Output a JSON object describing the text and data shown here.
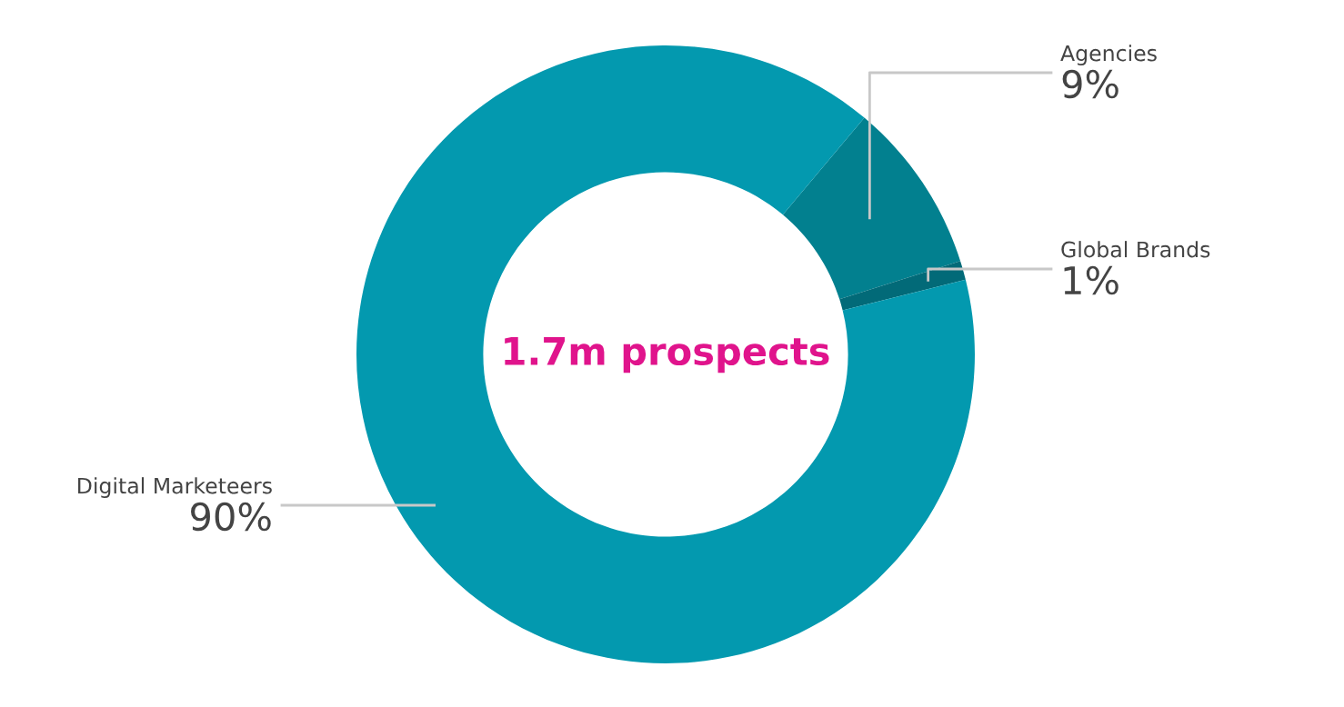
{
  "chart_data": {
    "type": "donut",
    "title": "1.7m prospects",
    "categories": [
      "Agencies",
      "Global Brands",
      "Digital Marketeers"
    ],
    "values": [
      9,
      1,
      90
    ],
    "value_labels": [
      "9%",
      "1%",
      "90%"
    ],
    "colors": [
      "#02808f",
      "#026a78",
      "#0399af"
    ],
    "legend": false
  }
}
